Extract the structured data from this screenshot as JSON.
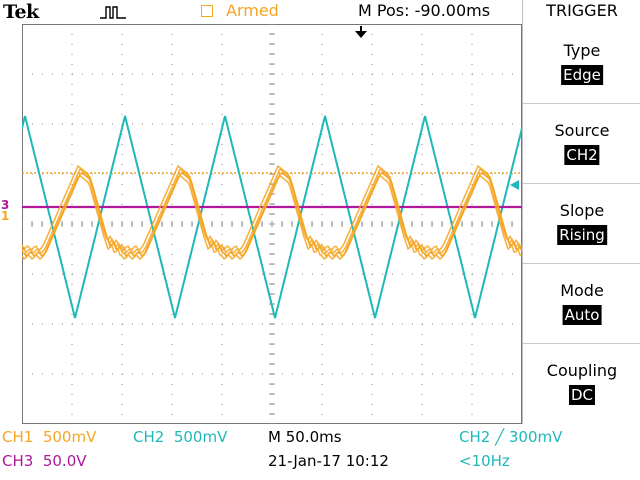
{
  "brand": "Tek",
  "armed": "Armed",
  "mpos": "M Pos: -90.00ms",
  "side_menu": {
    "title": "TRIGGER",
    "items": [
      {
        "label": "Type",
        "value": "Edge"
      },
      {
        "label": "Source",
        "value": "CH2"
      },
      {
        "label": "Slope",
        "value": "Rising"
      },
      {
        "label": "Mode",
        "value": "Auto"
      },
      {
        "label": "Coupling",
        "value": "DC"
      }
    ]
  },
  "markers": {
    "ch3": "3",
    "ch1": "1"
  },
  "status": {
    "ch1": "CH1  500mV",
    "ch2": "CH2  500mV",
    "timebase": "M 50.0ms",
    "trigger": "CH2 ╱ 300mV",
    "ch3": "CH3  50.0V",
    "datetime": "21-Jan-17 10:12",
    "freq": "<10Hz"
  },
  "colors": {
    "ch1": "#f5a623",
    "ch2": "#1fb8b8",
    "ch3": "#b0179b",
    "grid": "#8c8c8c"
  },
  "icons": [
    "pulse-icon",
    "trigger-position-icon",
    "trigger-level-icon"
  ]
}
